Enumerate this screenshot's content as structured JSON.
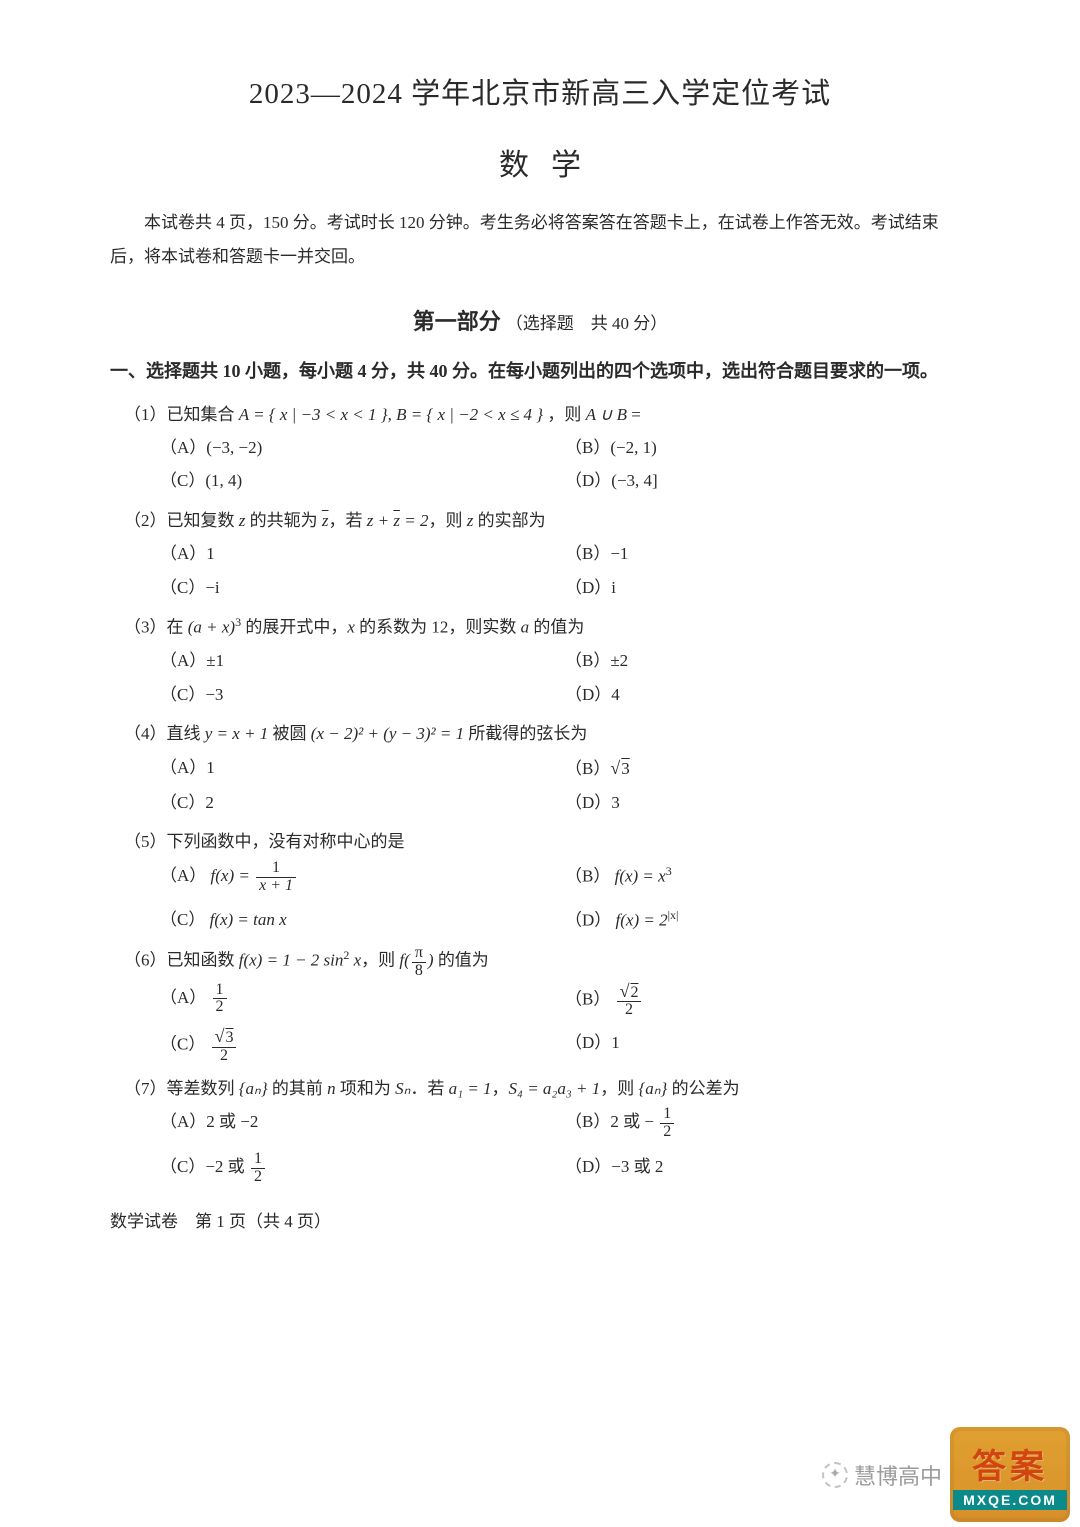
{
  "colors": {
    "text": "#2a2a2a",
    "page_bg": "#ffffff",
    "wm_text": "#969696",
    "wm_badge_bg_top": "#e0a030",
    "wm_badge_bg_bot": "#d8902a",
    "wm_badge_top_text": "#d04510",
    "wm_badge_bot_bg": "#0a8a8a",
    "wm_badge_bot_text": "#ffffff"
  },
  "typography": {
    "title_fontsize": 29,
    "subject_fontsize": 30,
    "body_fontsize": 17,
    "section_fontsize": 18,
    "font_family": "SimSun"
  },
  "page": {
    "title": "2023—2024 学年北京市新高三入学定位考试",
    "subject": "数学",
    "intro": "本试卷共 4 页，150 分。考试时长 120 分钟。考生务必将答案答在答题卡上，在试卷上作答无效。考试结束后，将本试卷和答题卡一并交回。",
    "part_title_bold": "第一部分",
    "part_title_note": "（选择题　共 40 分）",
    "section_head": "一、选择题共 10 小题，每小题 4 分，共 40 分。在每小题列出的四个选项中，选出符合题目要求的一项。",
    "footer": "数学试卷　第 1 页（共 4 页）"
  },
  "q1": {
    "stem_a": "（1）已知集合 ",
    "stem_b": "，则 ",
    "stem_c": " =",
    "set_A": "A = { x | −3 < x < 1 }",
    "set_B": "B = { x | −2 < x ≤ 4 }",
    "union": "A ∪ B",
    "A": "（A）(−3, −2)",
    "B": "（B）(−2, 1)",
    "C": "（C）(1, 4)",
    "D": "（D）(−3, 4]"
  },
  "q2": {
    "stem_a": "（2）已知复数 ",
    "z": "z",
    "stem_b": " 的共轭为 ",
    "stem_c": "，若 ",
    "eq": "z + z̄ = 2",
    "stem_d": "，则 ",
    "stem_e": " 的实部为",
    "A": "（A）1",
    "B": "（B）−1",
    "C": "（C）−i",
    "D": "（D）i"
  },
  "q3": {
    "stem_a": "（3）在 ",
    "expr": "(a + x)",
    "pow": "3",
    "stem_b": " 的展开式中，",
    "x": "x",
    "stem_c": " 的系数为 12，则实数 ",
    "a": "a",
    "stem_d": " 的值为",
    "A": "（A）±1",
    "B": "（B）±2",
    "C": "（C）−3",
    "D": "（D）4"
  },
  "q4": {
    "stem_a": "（4）直线 ",
    "line": "y = x + 1",
    "stem_b": " 被圆 ",
    "circle": "(x − 2)² + (y − 3)² = 1",
    "stem_c": " 所截得的弦长为",
    "A": "（A）1",
    "B_pre": "（B）",
    "B_radic": "√",
    "B_val": "3",
    "C": "（C）2",
    "D": "（D）3"
  },
  "q5": {
    "stem": "（5）下列函数中，没有对称中心的是",
    "A_pre": "（A）",
    "A_fn": "f(x) = ",
    "A_num": "1",
    "A_den": "x + 1",
    "B_pre": "（B）",
    "B_fn": "f(x) = x",
    "B_pow": "3",
    "C_pre": "（C）",
    "C_fn": "f(x) = tan x",
    "D_pre": "（D）",
    "D_fn": "f(x) = 2",
    "D_pow": "|x|"
  },
  "q6": {
    "stem_a": "（6）已知函数 ",
    "fn": "f(x) = 1 − 2 sin",
    "pow": "2",
    "fn_b": " x",
    "stem_b": "，则 ",
    "stem_c": " 的值为",
    "arg_pre": "f(",
    "arg_num": "π",
    "arg_den": "8",
    "arg_post": ")",
    "A_pre": "（A）",
    "A_num": "1",
    "A_den": "2",
    "B_pre": "（B）",
    "B_radic": "√",
    "B_num": "2",
    "B_den": "2",
    "C_pre": "（C）",
    "C_radic": "√",
    "C_num": "3",
    "C_den": "2",
    "D": "（D）1"
  },
  "q7": {
    "stem_a": "（7）等差数列 ",
    "seq": "{aₙ}",
    "stem_b": " 的其前 ",
    "n": "n",
    "stem_c": " 项和为 ",
    "S": "Sₙ",
    "stem_d": "．若 ",
    "a1": "a₁ = 1",
    "stem_e": "，",
    "S4": "S₄ = a₂a₃ + 1",
    "stem_f": "，则 ",
    "stem_g": " 的公差为",
    "A": "（A）2 或 −2",
    "B_pre": "（B）2 或 −",
    "B_num": "1",
    "B_den": "2",
    "C_pre": "（C）−2 或 ",
    "C_num": "1",
    "C_den": "2",
    "D": "（D）−3 或 2"
  },
  "watermark": {
    "left_text": "慧博高中",
    "badge_top": "答案",
    "badge_bot": "MXQE.COM"
  }
}
